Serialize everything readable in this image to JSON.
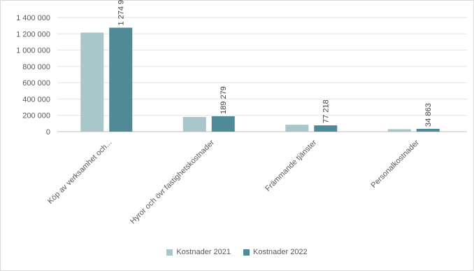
{
  "chart_data": {
    "type": "bar",
    "title": "",
    "xlabel": "",
    "ylabel": "",
    "categories": [
      "Köp av verksamhet och...",
      "Hyror och övr fastighetskostnader",
      "Främmande tjänster",
      "Personalkostnader"
    ],
    "series": [
      {
        "name": "Kostnader 2021",
        "values": [
          1215000,
          180000,
          85000,
          30000
        ],
        "color": "#a9c6cb"
      },
      {
        "name": "Kostnader 2022",
        "values": [
          1274931,
          189279,
          77218,
          34863
        ],
        "color": "#4f8a96"
      }
    ],
    "data_labels": [
      "1 274 931",
      "189 279",
      "77 218",
      "34 863"
    ],
    "ylim": [
      0,
      1400000
    ],
    "yticks": [
      {
        "value": 0,
        "label": "0"
      },
      {
        "value": 200000,
        "label": "200 000"
      },
      {
        "value": 400000,
        "label": "400 000"
      },
      {
        "value": 600000,
        "label": "600 000"
      },
      {
        "value": 800000,
        "label": "800 000"
      },
      {
        "value": 1000000,
        "label": "1 000 000"
      },
      {
        "value": 1200000,
        "label": "1 200 000"
      },
      {
        "value": 1400000,
        "label": "1 400 000"
      }
    ],
    "grid": true,
    "legend": "bottom-center"
  }
}
